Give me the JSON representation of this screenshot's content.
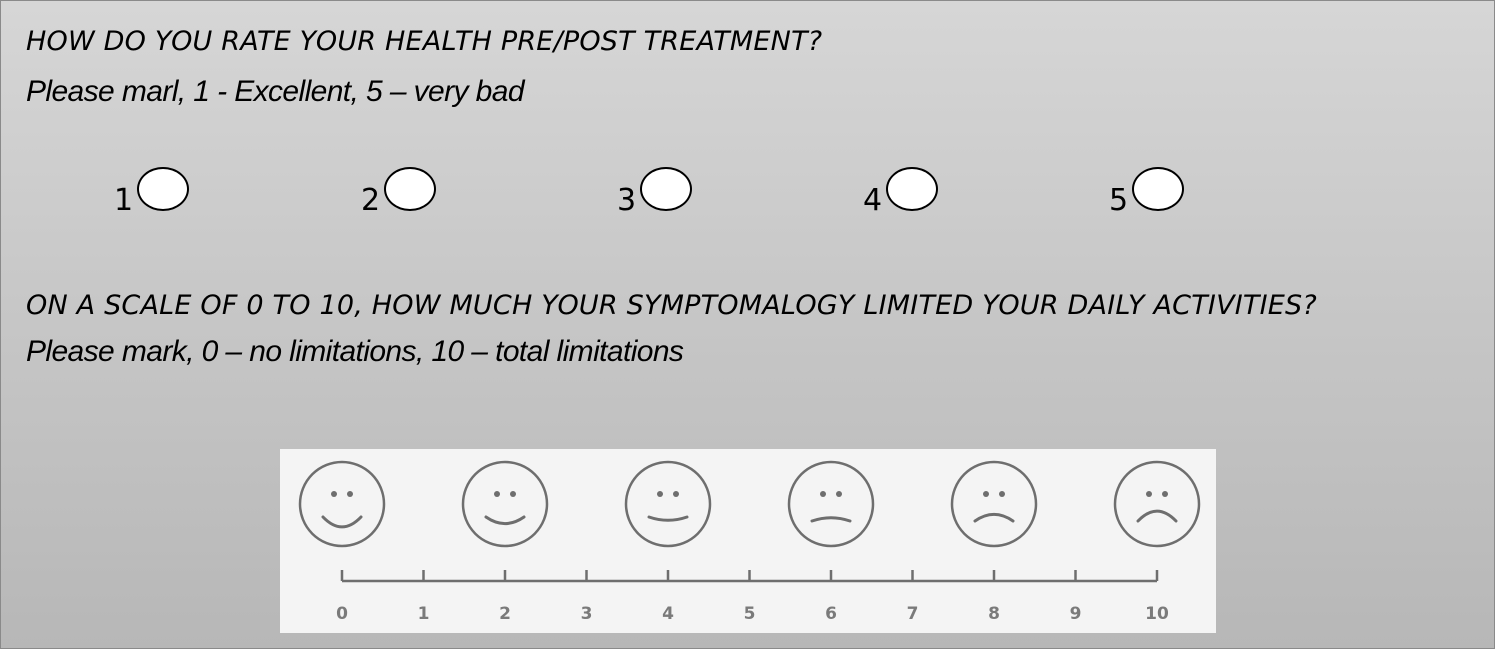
{
  "question1": {
    "title": "HOW DO YOU RATE YOUR HEALTH PRE/POST TREATMENT?",
    "instructions": "Please marl, 1 - Excellent, 5 – very bad",
    "options": [
      {
        "label": "1",
        "selected": false
      },
      {
        "label": "2",
        "selected": false
      },
      {
        "label": "3",
        "selected": false
      },
      {
        "label": "4",
        "selected": false
      },
      {
        "label": "5",
        "selected": false
      }
    ]
  },
  "question2": {
    "title": "ON A SCALE OF 0 TO 10, HOW MUCH YOUR SYMPTOMALOGY LIMITED YOUR DAILY ACTIVITIES?",
    "instructions": "Please mark, 0 – no limitations, 10 – total limitations",
    "scale": {
      "ticks": [
        "0",
        "1",
        "2",
        "3",
        "4",
        "5",
        "6",
        "7",
        "8",
        "9",
        "10"
      ],
      "faces": [
        {
          "value": 0,
          "mood": "very-happy"
        },
        {
          "value": 2,
          "mood": "happy"
        },
        {
          "value": 4,
          "mood": "slightly-happy"
        },
        {
          "value": 6,
          "mood": "slightly-sad"
        },
        {
          "value": 8,
          "mood": "sad"
        },
        {
          "value": 10,
          "mood": "very-sad"
        }
      ]
    }
  },
  "colors": {
    "panel_top": "#d6d6d6",
    "panel_bottom": "#b7b7b7",
    "scale_background": "#f4f4f4",
    "face_stroke": "#6e6e6e"
  }
}
